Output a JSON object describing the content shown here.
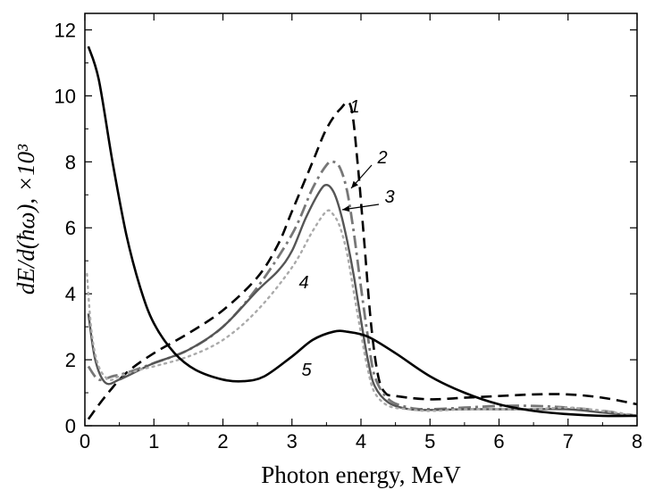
{
  "chart_data": {
    "type": "line",
    "xlabel": "Photon energy, MeV",
    "ylabel": "dE/d(ħω), ×10³",
    "xlim": [
      0,
      8
    ],
    "ylim": [
      0,
      12.5
    ],
    "xticks": [
      0,
      1,
      2,
      3,
      4,
      5,
      6,
      7,
      8
    ],
    "yticks": [
      0,
      2,
      4,
      6,
      8,
      10,
      12
    ],
    "grid": false,
    "series": [
      {
        "name": "1",
        "style": "dashed",
        "color": "#000000",
        "x": [
          0.05,
          0.3,
          0.6,
          1.0,
          1.5,
          2.0,
          2.5,
          2.8,
          3.0,
          3.3,
          3.5,
          3.7,
          3.85,
          3.95,
          4.05,
          4.15,
          4.25,
          4.35,
          4.5,
          5.0,
          5.5,
          6.0,
          6.5,
          7.0,
          7.5,
          8.0
        ],
        "y": [
          0.2,
          0.9,
          1.6,
          2.2,
          2.8,
          3.5,
          4.5,
          5.5,
          6.5,
          8.0,
          9.0,
          9.6,
          9.7,
          8.0,
          5.5,
          3.0,
          1.5,
          1.0,
          0.9,
          0.8,
          0.85,
          0.9,
          0.95,
          0.95,
          0.85,
          0.65
        ]
      },
      {
        "name": "2",
        "style": "dash-dot",
        "color": "#777777",
        "x": [
          0.05,
          0.2,
          0.4,
          0.6,
          1.0,
          1.5,
          2.0,
          2.5,
          3.0,
          3.3,
          3.5,
          3.6,
          3.7,
          3.8,
          3.9,
          4.0,
          4.1,
          4.2,
          4.4,
          4.7,
          5.0,
          5.5,
          6.0,
          6.5,
          7.0,
          7.5,
          8.0
        ],
        "y": [
          1.8,
          1.4,
          1.5,
          1.6,
          1.9,
          2.3,
          3.0,
          4.2,
          5.8,
          7.2,
          7.9,
          8.0,
          7.8,
          7.1,
          5.8,
          4.2,
          2.7,
          1.5,
          0.8,
          0.55,
          0.5,
          0.55,
          0.6,
          0.6,
          0.55,
          0.45,
          0.3
        ]
      },
      {
        "name": "3",
        "style": "solid",
        "color": "#555555",
        "x": [
          0.05,
          0.15,
          0.3,
          0.5,
          0.8,
          1.0,
          1.5,
          2.0,
          2.5,
          2.8,
          3.0,
          3.2,
          3.4,
          3.5,
          3.6,
          3.7,
          3.8,
          3.9,
          4.0,
          4.1,
          4.2,
          4.4,
          4.7,
          5.0,
          5.5,
          6.0,
          6.5,
          7.0,
          7.5,
          8.0
        ],
        "y": [
          3.4,
          2.0,
          1.3,
          1.4,
          1.7,
          1.9,
          2.3,
          3.0,
          4.1,
          4.7,
          5.3,
          6.3,
          7.1,
          7.3,
          7.1,
          6.5,
          5.6,
          4.5,
          3.2,
          2.0,
          1.2,
          0.7,
          0.5,
          0.48,
          0.5,
          0.5,
          0.5,
          0.5,
          0.4,
          0.3
        ]
      },
      {
        "name": "4",
        "style": "dotted",
        "color": "#aaaaaa",
        "x": [
          0.03,
          0.1,
          0.2,
          0.35,
          0.5,
          0.8,
          1.0,
          1.5,
          2.0,
          2.5,
          3.0,
          3.3,
          3.5,
          3.6,
          3.7,
          3.8,
          3.9,
          4.0,
          4.1,
          4.2,
          4.4,
          4.7,
          5.0,
          5.5,
          6.0,
          6.5,
          7.0,
          7.5,
          8.0
        ],
        "y": [
          4.6,
          2.8,
          1.8,
          1.4,
          1.5,
          1.7,
          1.8,
          2.1,
          2.6,
          3.5,
          4.8,
          5.9,
          6.5,
          6.4,
          6.0,
          5.2,
          4.0,
          2.8,
          1.7,
          1.0,
          0.6,
          0.5,
          0.45,
          0.5,
          0.5,
          0.5,
          0.55,
          0.45,
          0.3
        ]
      },
      {
        "name": "5",
        "style": "solid",
        "color": "#000000",
        "x": [
          0.05,
          0.2,
          0.4,
          0.6,
          0.8,
          1.0,
          1.3,
          1.6,
          2.0,
          2.3,
          2.6,
          3.0,
          3.3,
          3.6,
          3.8,
          4.1,
          4.5,
          5.0,
          5.5,
          6.0,
          6.5,
          7.0,
          7.5,
          8.0
        ],
        "y": [
          11.5,
          10.5,
          8.0,
          5.8,
          4.2,
          3.1,
          2.2,
          1.7,
          1.4,
          1.35,
          1.5,
          2.1,
          2.6,
          2.85,
          2.85,
          2.7,
          2.2,
          1.5,
          1.0,
          0.65,
          0.45,
          0.35,
          0.3,
          0.3
        ]
      }
    ],
    "annotations": [
      {
        "text": "1",
        "target_series": "1"
      },
      {
        "text": "2",
        "target_series": "2"
      },
      {
        "text": "3",
        "target_series": "3"
      },
      {
        "text": "4",
        "target_series": "4"
      },
      {
        "text": "5",
        "target_series": "5"
      }
    ]
  }
}
